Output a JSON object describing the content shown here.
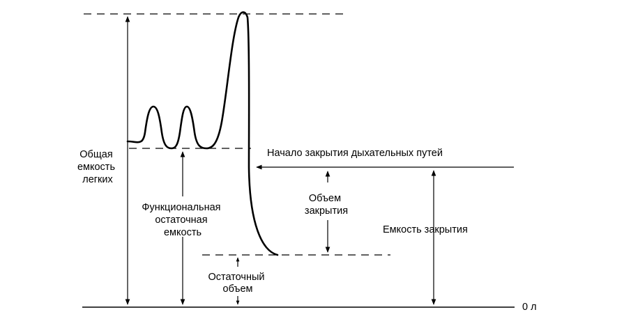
{
  "labels": {
    "total_capacity": [
      "Общая",
      "емкость",
      "легких"
    ],
    "frc": [
      "Функциональная",
      "остаточная",
      "емкость"
    ],
    "residual_volume": [
      "Остаточный",
      "объем"
    ],
    "closing_volume": [
      "Объем",
      "закрытия"
    ],
    "closing_capacity": "Емкость закрытия",
    "airway_closure_onset": "Начало закрытия дыхательных путей",
    "zero": "0 л"
  }
}
